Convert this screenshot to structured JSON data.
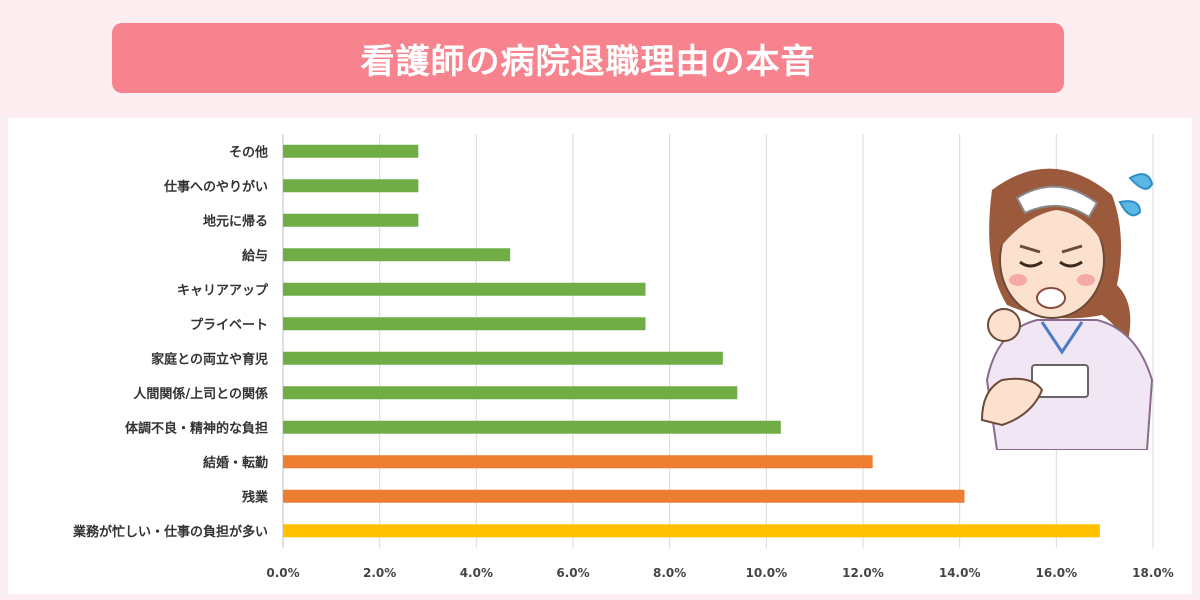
{
  "title": "看護師の病院退職理由の本音",
  "chart_data": {
    "type": "bar",
    "orientation": "horizontal",
    "categories": [
      "その他",
      "仕事へのやりがい",
      "地元に帰る",
      "給与",
      "キャリアアップ",
      "プライベート",
      "家庭との両立や育児",
      "人間関係/上司との関係",
      "体調不良・精神的な負担",
      "結婚・転勤",
      "残業",
      "業務が忙しい・仕事の負担が多い"
    ],
    "values": [
      2.8,
      2.8,
      2.8,
      4.7,
      7.5,
      7.5,
      9.1,
      9.4,
      10.3,
      12.2,
      14.1,
      16.9
    ],
    "bar_colors": [
      "#70ad47",
      "#70ad47",
      "#70ad47",
      "#70ad47",
      "#70ad47",
      "#70ad47",
      "#70ad47",
      "#70ad47",
      "#70ad47",
      "#ed7d31",
      "#ed7d31",
      "#ffc000"
    ],
    "xlim": [
      0,
      18
    ],
    "x_ticks": [
      "0.0%",
      "2.0%",
      "4.0%",
      "6.0%",
      "8.0%",
      "10.0%",
      "12.0%",
      "14.0%",
      "16.0%",
      "18.0%"
    ],
    "x_tick_values": [
      0,
      2,
      4,
      6,
      8,
      10,
      12,
      14,
      16,
      18
    ],
    "grid": true,
    "unit": "%"
  },
  "illustration": {
    "name": "worried-nurse-icon"
  },
  "colors": {
    "banner": "#f7838f",
    "background": "#fdeef1",
    "panel": "#ffffff",
    "grid": "#d9d9d9"
  }
}
